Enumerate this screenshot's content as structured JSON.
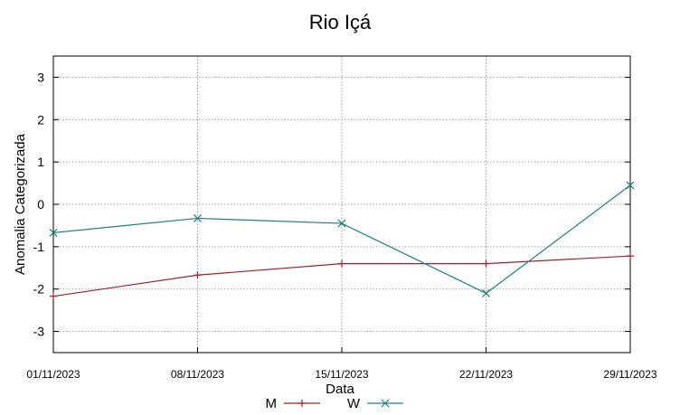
{
  "chart_data": {
    "type": "line",
    "title": "Rio Içá",
    "xlabel": "Data",
    "ylabel": "Anomalia Categorizada",
    "categories": [
      "01/11/2023",
      "08/11/2023",
      "15/11/2023",
      "22/11/2023",
      "29/11/2023"
    ],
    "x": [
      "01/11/2023",
      "08/11/2023",
      "15/11/2023",
      "22/11/2023",
      "29/11/2023"
    ],
    "ylim": [
      -3.5,
      3.5
    ],
    "yticks": [
      -3,
      -2,
      -1,
      0,
      1,
      2,
      3
    ],
    "grid": true,
    "legend_position": "bottom-center",
    "series": [
      {
        "name": "M",
        "values": [
          -2.17,
          -1.67,
          -1.4,
          -1.4,
          -1.22
        ],
        "color": "#a0202a",
        "marker": "plus"
      },
      {
        "name": "W",
        "values": [
          -0.67,
          -0.33,
          -0.45,
          -2.1,
          0.45
        ],
        "color": "#1e7f82",
        "marker": "cross"
      }
    ]
  }
}
